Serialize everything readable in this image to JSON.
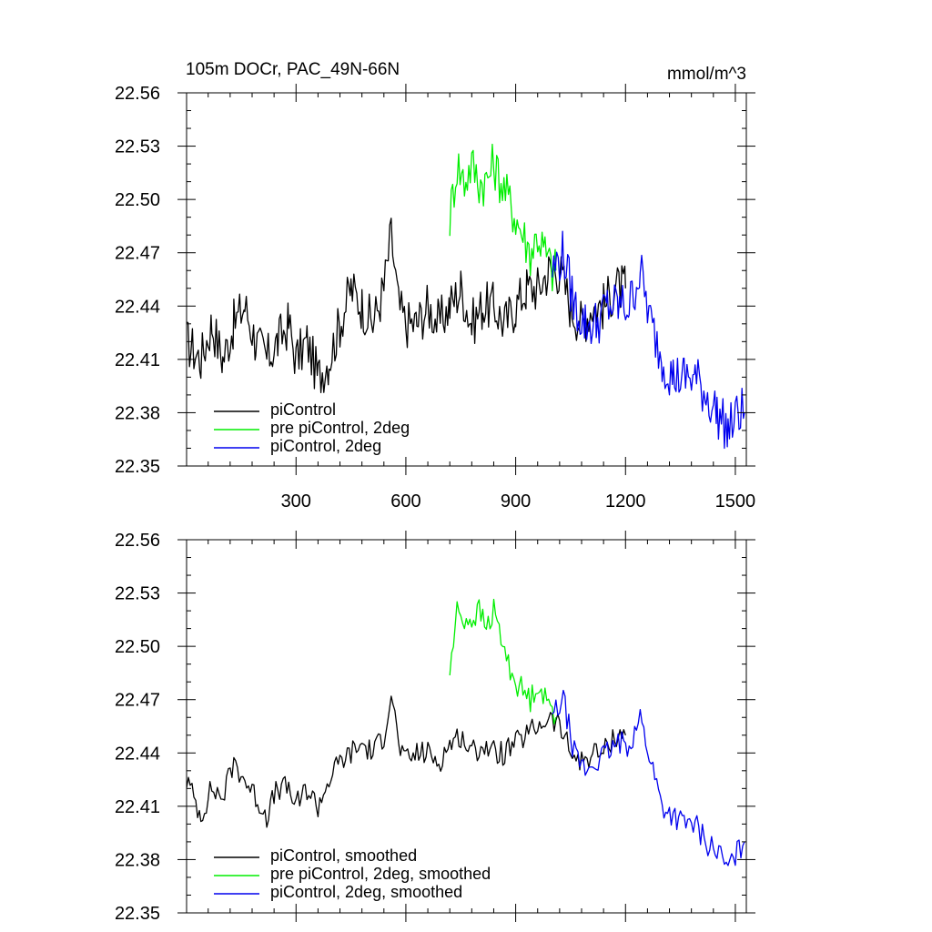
{
  "title_left": "105m DOCr, PAC_49N-66N",
  "title_right": "mmol/m^3",
  "colors": {
    "black": "#000000",
    "green": "#00ee00",
    "blue": "#0000ee"
  },
  "chart_data": [
    {
      "type": "line",
      "panel": "raw",
      "xlim": [
        1,
        1530
      ],
      "ylim": [
        22.35,
        22.56
      ],
      "x_ticks": [
        300,
        600,
        900,
        1200,
        1500
      ],
      "x_tick_labels": [
        "300",
        "600",
        "900",
        "1200",
        "1500"
      ],
      "y_ticks": [
        22.35,
        22.38,
        22.41,
        22.44,
        22.47,
        22.5,
        22.53,
        22.56
      ],
      "y_tick_labels": [
        "22.35",
        "22.38",
        "22.41",
        "22.44",
        "22.47",
        "22.50",
        "22.53",
        "22.56"
      ],
      "legend_position": "bottom-left",
      "series": [
        {
          "name": "piControl",
          "color": "black",
          "x": [
            1,
            40,
            70,
            100,
            130,
            160,
            190,
            220,
            250,
            280,
            300,
            330,
            360,
            390,
            420,
            450,
            480,
            510,
            540,
            560,
            580,
            600,
            630,
            660,
            690,
            720,
            750,
            780,
            810,
            840,
            870,
            900,
            930,
            960,
            990,
            1020,
            1050,
            1080,
            1110,
            1140,
            1170,
            1200
          ],
          "y": [
            22.42,
            22.41,
            22.43,
            22.41,
            22.43,
            22.44,
            22.42,
            22.41,
            22.42,
            22.43,
            22.41,
            22.42,
            22.4,
            22.41,
            22.43,
            22.45,
            22.44,
            22.43,
            22.45,
            22.48,
            22.44,
            22.43,
            22.43,
            22.44,
            22.43,
            22.44,
            22.45,
            22.43,
            22.44,
            22.44,
            22.43,
            22.44,
            22.45,
            22.45,
            22.46,
            22.46,
            22.44,
            22.43,
            22.44,
            22.44,
            22.45,
            22.45
          ]
        },
        {
          "name": "pre piControl, 2deg",
          "color": "green",
          "x": [
            720,
            740,
            760,
            780,
            800,
            820,
            840,
            860,
            880,
            900,
            920,
            940,
            960,
            980,
            1000,
            1010
          ],
          "y": [
            22.49,
            22.52,
            22.51,
            22.52,
            22.51,
            22.51,
            22.52,
            22.51,
            22.5,
            22.49,
            22.48,
            22.47,
            22.48,
            22.47,
            22.46,
            22.46
          ]
        },
        {
          "name": "piControl, 2deg",
          "color": "blue",
          "x": [
            1000,
            1030,
            1060,
            1090,
            1120,
            1150,
            1180,
            1210,
            1240,
            1270,
            1300,
            1330,
            1360,
            1390,
            1420,
            1450,
            1480,
            1510,
            1525
          ],
          "y": [
            22.46,
            22.47,
            22.44,
            22.43,
            22.43,
            22.44,
            22.44,
            22.44,
            22.46,
            22.43,
            22.41,
            22.4,
            22.4,
            22.4,
            22.39,
            22.38,
            22.37,
            22.38,
            22.38
          ]
        }
      ]
    },
    {
      "type": "line",
      "panel": "smoothed",
      "xlim": [
        1,
        1530
      ],
      "ylim": [
        22.35,
        22.56
      ],
      "x_ticks": [
        300,
        600,
        900,
        1200,
        1500
      ],
      "y_ticks": [
        22.35,
        22.38,
        22.41,
        22.44,
        22.47,
        22.5,
        22.53,
        22.56
      ],
      "y_tick_labels": [
        "22.35",
        "22.38",
        "22.41",
        "22.44",
        "22.47",
        "22.50",
        "22.53",
        "22.56"
      ],
      "legend_position": "bottom-left",
      "series": [
        {
          "name": "piControl, smoothed",
          "color": "black",
          "x": [
            1,
            40,
            70,
            100,
            130,
            160,
            190,
            220,
            250,
            280,
            300,
            330,
            360,
            390,
            420,
            450,
            480,
            510,
            540,
            560,
            580,
            600,
            630,
            660,
            690,
            720,
            750,
            780,
            810,
            840,
            870,
            900,
            930,
            960,
            990,
            1020,
            1050,
            1080,
            1110,
            1140,
            1170,
            1200
          ],
          "y": [
            22.425,
            22.405,
            22.42,
            22.415,
            22.435,
            22.425,
            22.415,
            22.405,
            22.42,
            22.42,
            22.41,
            22.42,
            22.41,
            22.425,
            22.435,
            22.44,
            22.445,
            22.44,
            22.45,
            22.475,
            22.445,
            22.435,
            22.44,
            22.44,
            22.435,
            22.445,
            22.45,
            22.44,
            22.445,
            22.44,
            22.44,
            22.445,
            22.45,
            22.455,
            22.46,
            22.455,
            22.44,
            22.435,
            22.44,
            22.44,
            22.45,
            22.45
          ]
        },
        {
          "name": "pre piControl, 2deg, smoothed",
          "color": "green",
          "x": [
            720,
            740,
            760,
            780,
            800,
            820,
            840,
            860,
            880,
            900,
            920,
            940,
            960,
            980,
            1000,
            1010
          ],
          "y": [
            22.485,
            22.52,
            22.515,
            22.515,
            22.52,
            22.51,
            22.52,
            22.505,
            22.49,
            22.48,
            22.475,
            22.47,
            22.48,
            22.47,
            22.465,
            22.46
          ]
        },
        {
          "name": "piControl, 2deg, smoothed",
          "color": "blue",
          "x": [
            1000,
            1030,
            1060,
            1090,
            1120,
            1150,
            1180,
            1210,
            1240,
            1270,
            1300,
            1330,
            1360,
            1390,
            1420,
            1450,
            1480,
            1510,
            1525
          ],
          "y": [
            22.46,
            22.47,
            22.44,
            22.43,
            22.435,
            22.44,
            22.445,
            22.445,
            22.46,
            22.435,
            22.41,
            22.405,
            22.4,
            22.4,
            22.39,
            22.385,
            22.375,
            22.385,
            22.39
          ]
        }
      ]
    }
  ]
}
